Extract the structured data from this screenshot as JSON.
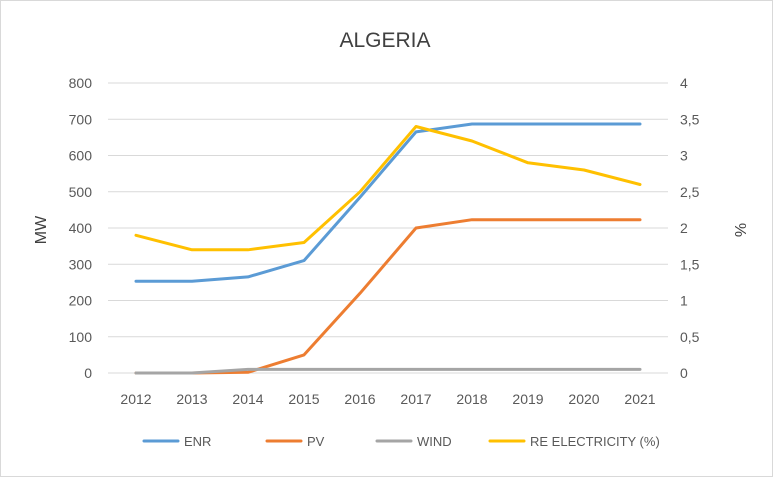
{
  "chart_data": {
    "type": "line",
    "title": "ALGERIA",
    "categories": [
      "2012",
      "2013",
      "2014",
      "2015",
      "2016",
      "2017",
      "2018",
      "2019",
      "2020",
      "2021"
    ],
    "ylabel": "MW",
    "y2label": "%",
    "ylim": [
      0,
      800
    ],
    "y2lim": [
      0,
      4
    ],
    "yticks": [
      "0",
      "100",
      "200",
      "300",
      "400",
      "500",
      "600",
      "700",
      "800"
    ],
    "y2ticks": [
      "0",
      "0,5",
      "1",
      "1,5",
      "2",
      "2,5",
      "3",
      "3,5",
      "4"
    ],
    "grid": true,
    "legend_position": "bottom",
    "series": [
      {
        "name": "ENR",
        "axis": "left",
        "color": "#5b9bd5",
        "values": [
          253,
          253,
          265,
          310,
          485,
          665,
          687,
          687,
          687,
          687
        ]
      },
      {
        "name": "PV",
        "axis": "left",
        "color": "#ed7d31",
        "values": [
          0,
          0,
          2,
          50,
          220,
          400,
          423,
          423,
          423,
          423
        ]
      },
      {
        "name": "WIND",
        "axis": "left",
        "color": "#a5a5a5",
        "values": [
          0,
          0,
          10,
          10,
          10,
          10,
          10,
          10,
          10,
          10
        ]
      },
      {
        "name": "RE ELECTRICITY (%)",
        "axis": "right",
        "color": "#ffc000",
        "values": [
          1.9,
          1.7,
          1.7,
          1.8,
          2.5,
          3.4,
          3.2,
          2.9,
          2.8,
          2.6
        ]
      }
    ]
  }
}
